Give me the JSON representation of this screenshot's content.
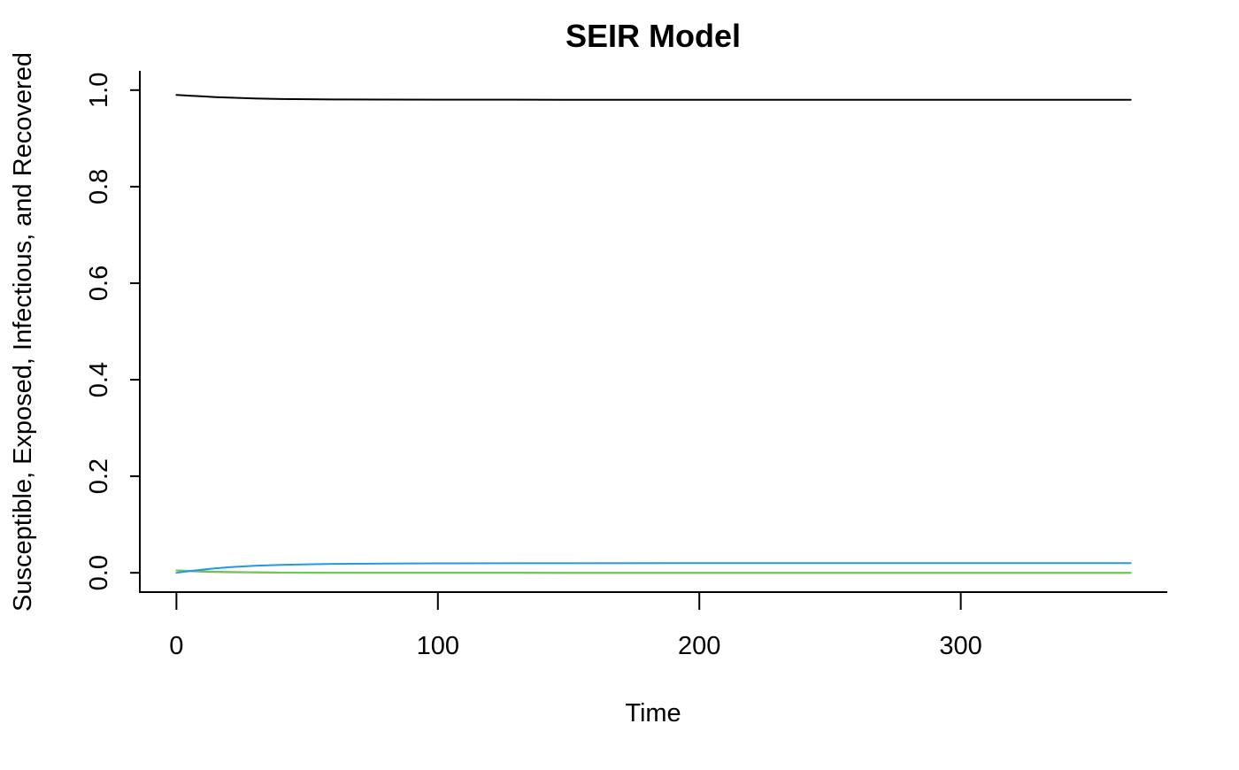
{
  "chart_data": {
    "type": "line",
    "title": "SEIR Model",
    "xlabel": "Time",
    "ylabel": "Susceptible, Exposed, Infectious, and Recovered",
    "xlim": [
      -14,
      379
    ],
    "ylim": [
      -0.04,
      1.04
    ],
    "grid": false,
    "legend": "none",
    "x_ticks": [
      0,
      100,
      200,
      300
    ],
    "x_tick_labels": [
      "0",
      "100",
      "200",
      "300"
    ],
    "y_ticks": [
      0,
      0.2,
      0.4,
      0.6,
      0.8,
      1.0
    ],
    "y_tick_labels": [
      "0.0",
      "0.2",
      "0.4",
      "0.6",
      "0.8",
      "1.0"
    ],
    "x": [
      0,
      5,
      10,
      15,
      20,
      30,
      40,
      50,
      60,
      80,
      100,
      130,
      150,
      200,
      250,
      300,
      365
    ],
    "series": [
      {
        "color": "#000000",
        "values": [
          0.99,
          0.9885,
          0.987,
          0.9855,
          0.9845,
          0.9828,
          0.9816,
          0.981,
          0.9806,
          0.9803,
          0.9802,
          0.9801,
          0.98,
          0.98,
          0.98,
          0.98,
          0.98
        ]
      },
      {
        "color": "#DF536B",
        "values": [
          0.005,
          0.0035,
          0.0025,
          0.0018,
          0.0013,
          0.0007,
          0.0004,
          0.0002,
          0.0001,
          5e-05,
          2e-05,
          1e-05,
          0,
          0,
          0,
          0,
          0
        ]
      },
      {
        "color": "#61D04F",
        "values": [
          0.005,
          0.004,
          0.0032,
          0.0025,
          0.0019,
          0.0011,
          0.0006,
          0.0003,
          0.0002,
          8e-05,
          3e-05,
          1e-05,
          0,
          0,
          0,
          0,
          0
        ]
      },
      {
        "color": "#2297E6",
        "values": [
          0,
          0.0035,
          0.0065,
          0.0092,
          0.0115,
          0.0145,
          0.0165,
          0.0176,
          0.0184,
          0.0192,
          0.0196,
          0.0198,
          0.0199,
          0.02,
          0.02,
          0.02,
          0.02
        ]
      }
    ]
  }
}
